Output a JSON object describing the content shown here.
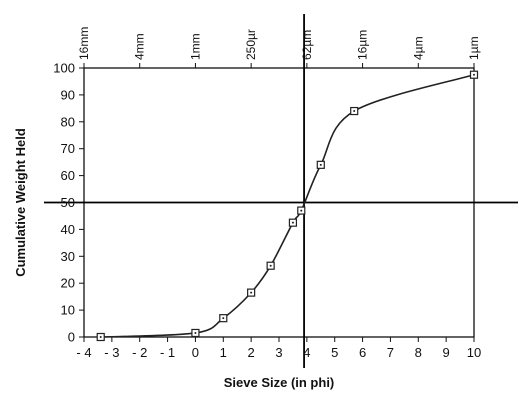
{
  "chart_data": {
    "type": "line",
    "title": "",
    "xlabel": "Sieve Size (in phi)",
    "ylabel": "Cumulative Weight Held",
    "xlim": [
      -4,
      10
    ],
    "ylim": [
      0,
      100
    ],
    "x_ticks": [
      -4,
      -3,
      -2,
      -1,
      0,
      1,
      2,
      3,
      4,
      5,
      6,
      7,
      8,
      9,
      10
    ],
    "x_tick_labels": [
      "- 4",
      "- 3",
      "- 2",
      "- 1",
      "0",
      "1",
      "2",
      "3",
      "4",
      "5",
      "6",
      "7",
      "8",
      "9",
      "10"
    ],
    "y_ticks": [
      0,
      10,
      20,
      30,
      40,
      50,
      60,
      70,
      80,
      90,
      100
    ],
    "y_tick_labels": [
      "0",
      "10",
      "20",
      "30",
      "40",
      "50",
      "60",
      "70",
      "80",
      "90",
      "100"
    ],
    "top_axis": {
      "ticks": [
        {
          "phi": -4,
          "label": "16mm"
        },
        {
          "phi": -2,
          "label": "4mm"
        },
        {
          "phi": 0,
          "label": "1mm"
        },
        {
          "phi": 2,
          "label": "250µr"
        },
        {
          "phi": 4,
          "label": "62µm"
        },
        {
          "phi": 6,
          "label": "16µm"
        },
        {
          "phi": 8,
          "label": "4µm"
        },
        {
          "phi": 10,
          "label": "1µm"
        }
      ]
    },
    "series": [
      {
        "x": [
          -3.4,
          0,
          1,
          2,
          2.7,
          3.5,
          3.8,
          4.5,
          5.7,
          10
        ],
        "y": [
          0,
          1.5,
          7,
          16.5,
          26.5,
          42.5,
          47,
          64,
          84,
          97.5
        ],
        "marker": "square-with-dot",
        "color": "#222222"
      }
    ],
    "reference_lines": [
      {
        "orientation": "vertical",
        "x": 3.9
      },
      {
        "orientation": "horizontal",
        "y": 50
      }
    ],
    "grid": false,
    "legend": "none"
  }
}
